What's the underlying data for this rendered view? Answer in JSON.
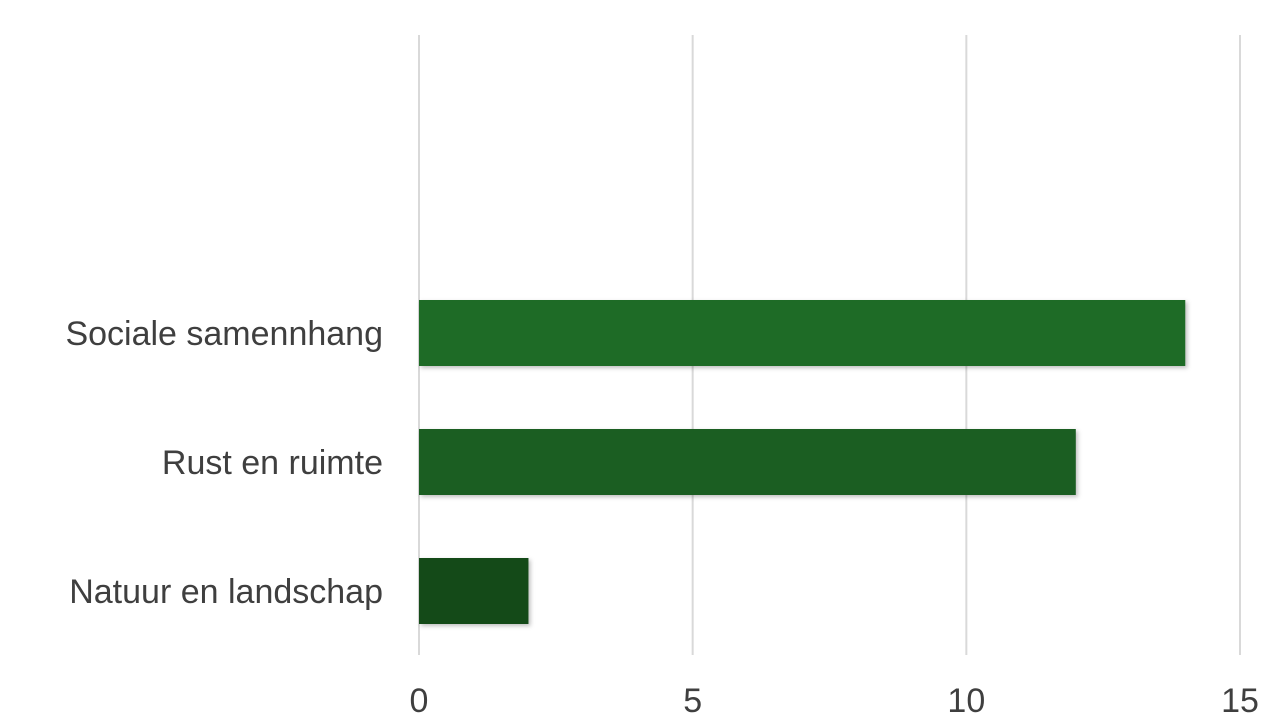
{
  "chart_data": {
    "type": "bar",
    "orientation": "horizontal",
    "categories": [
      "Sociale samennhang",
      "Rust en ruimte",
      "Natuur en landschap"
    ],
    "values": [
      14,
      12,
      2
    ],
    "xlim": [
      0,
      15
    ],
    "xticks": [
      0,
      5,
      10,
      15
    ],
    "grid": true,
    "colors": [
      "#1e6b26",
      "#1b5e22",
      "#144a18"
    ]
  }
}
